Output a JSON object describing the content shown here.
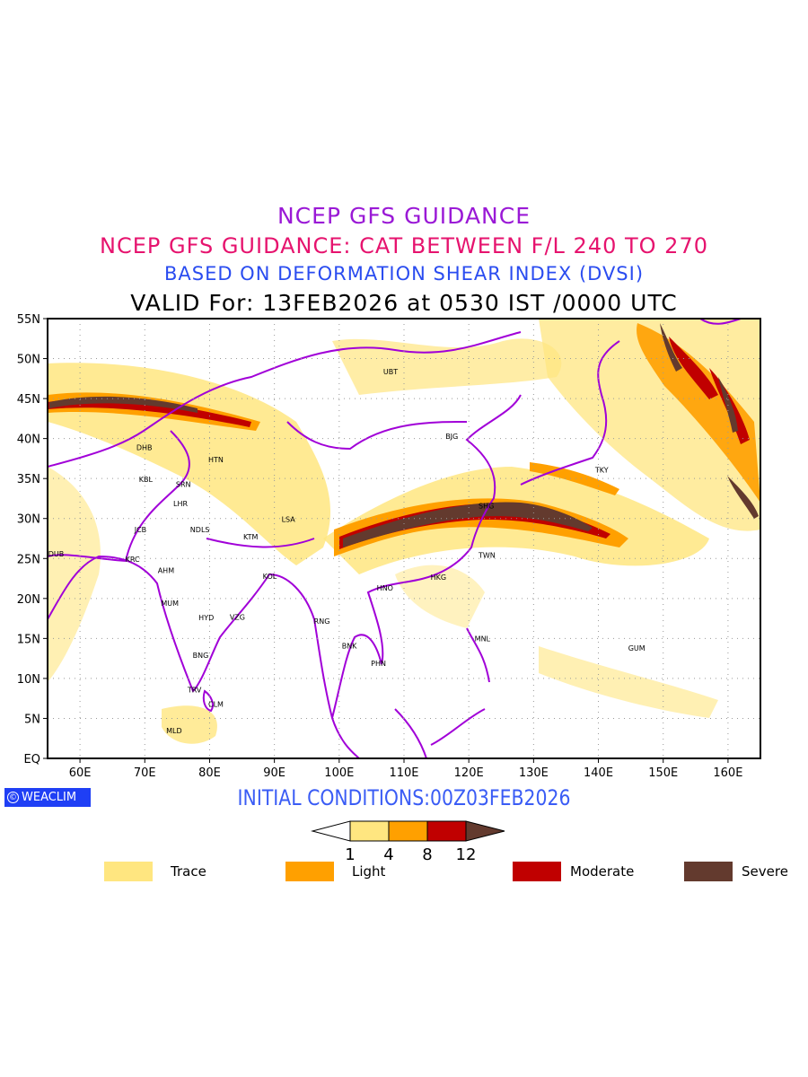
{
  "titles": {
    "line1": "NCEP GFS GUIDANCE",
    "line2": "NCEP GFS GUIDANCE: CAT BETWEEN F/L 240 TO 270",
    "line3": "BASED ON DEFORMATION SHEAR INDEX (DVSI)",
    "line4": "VALID For: 13FEB2026 at 0530 IST /0000 UTC"
  },
  "map": {
    "lon_range": [
      55,
      165
    ],
    "lat_range": [
      0,
      55
    ],
    "lat_labels": [
      "EQ",
      "5N",
      "10N",
      "15N",
      "20N",
      "25N",
      "30N",
      "35N",
      "40N",
      "45N",
      "50N",
      "55N"
    ],
    "lon_labels": [
      "60E",
      "70E",
      "80E",
      "90E",
      "100E",
      "110E",
      "120E",
      "130E",
      "140E",
      "150E",
      "160E"
    ],
    "cities": [
      {
        "name": "UBT",
        "lon": 106.8,
        "lat": 48.4
      },
      {
        "name": "DHB",
        "lon": 68.7,
        "lat": 38.9
      },
      {
        "name": "HTN",
        "lon": 79.8,
        "lat": 37.4
      },
      {
        "name": "KBL",
        "lon": 69.1,
        "lat": 34.9
      },
      {
        "name": "SRN",
        "lon": 74.8,
        "lat": 34.3
      },
      {
        "name": "LHR",
        "lon": 74.4,
        "lat": 31.9
      },
      {
        "name": "LSA",
        "lon": 91.1,
        "lat": 29.9
      },
      {
        "name": "JCB",
        "lon": 68.4,
        "lat": 28.6
      },
      {
        "name": "NDLS",
        "lon": 77.0,
        "lat": 28.6
      },
      {
        "name": "KTM",
        "lon": 85.2,
        "lat": 27.7
      },
      {
        "name": "DUB",
        "lon": 55.1,
        "lat": 25.6
      },
      {
        "name": "KRC",
        "lon": 67.0,
        "lat": 24.9
      },
      {
        "name": "AHM",
        "lon": 72.0,
        "lat": 23.5
      },
      {
        "name": "KOL",
        "lon": 88.2,
        "lat": 22.8
      },
      {
        "name": "MUM",
        "lon": 72.5,
        "lat": 19.4
      },
      {
        "name": "HYD",
        "lon": 78.3,
        "lat": 17.6
      },
      {
        "name": "VZG",
        "lon": 83.1,
        "lat": 17.7
      },
      {
        "name": "BNG",
        "lon": 77.4,
        "lat": 12.9
      },
      {
        "name": "TRV",
        "lon": 76.6,
        "lat": 8.6
      },
      {
        "name": "CLM",
        "lon": 79.8,
        "lat": 6.8
      },
      {
        "name": "MLD",
        "lon": 73.3,
        "lat": 3.5
      },
      {
        "name": "RNG",
        "lon": 96.1,
        "lat": 17.2
      },
      {
        "name": "BNK",
        "lon": 100.4,
        "lat": 14.1
      },
      {
        "name": "PHN",
        "lon": 104.9,
        "lat": 11.9
      },
      {
        "name": "HNO",
        "lon": 105.8,
        "lat": 21.3
      },
      {
        "name": "HKG",
        "lon": 114.1,
        "lat": 22.7
      },
      {
        "name": "TWN",
        "lon": 121.5,
        "lat": 25.4
      },
      {
        "name": "MNL",
        "lon": 120.9,
        "lat": 15.0
      },
      {
        "name": "GUM",
        "lon": 144.6,
        "lat": 13.8
      },
      {
        "name": "SHG",
        "lon": 121.5,
        "lat": 31.6
      },
      {
        "name": "BJG",
        "lon": 116.4,
        "lat": 40.3
      },
      {
        "name": "TKY",
        "lon": 139.5,
        "lat": 36.1
      }
    ]
  },
  "footer": {
    "logo": "WEACLIM",
    "logo_symbol": "©",
    "initial_conditions": "INITIAL CONDITIONS:00Z03FEB2026"
  },
  "colorbar": {
    "levels": [
      "1",
      "4",
      "8",
      "12"
    ],
    "colors": [
      "#ffe680",
      "#ffa000",
      "#c00000",
      "#633a2e"
    ]
  },
  "legend": [
    {
      "label": "Trace",
      "color": "#ffe680"
    },
    {
      "label": "Light",
      "color": "#ffa000"
    },
    {
      "label": "Moderate",
      "color": "#c00000"
    },
    {
      "label": "Severe",
      "color": "#633a2e"
    }
  ],
  "colors": {
    "coastline": "#a100d8",
    "trace": "#ffe680",
    "light": "#ffa000",
    "moderate": "#c00000",
    "severe": "#633a2e"
  }
}
